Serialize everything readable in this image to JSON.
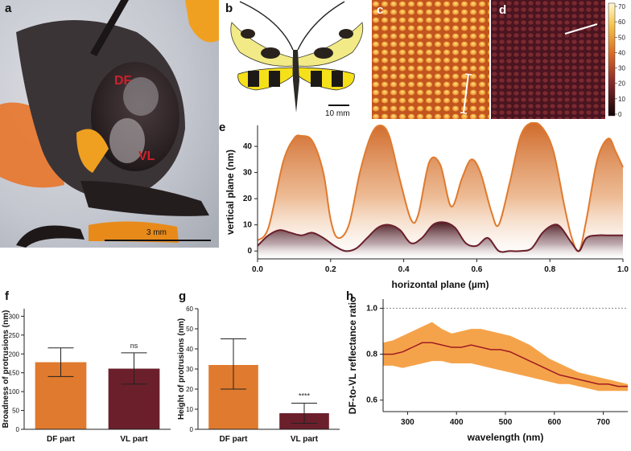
{
  "panel_labels": {
    "a": "a",
    "b": "b",
    "c": "c",
    "d": "d",
    "e": "e",
    "f": "f",
    "g": "g",
    "h": "h"
  },
  "photo_a": {
    "df_label": "DF",
    "vl_label": "VL",
    "scale_bar": "3 mm"
  },
  "photo_b": {
    "scale_bar": "10 mm"
  },
  "colorbar": {
    "ticks": [
      "70",
      "60",
      "50",
      "40",
      "30",
      "20",
      "10",
      "0"
    ]
  },
  "colors": {
    "orange": "#e07a2e",
    "dark": "#6b1f2b",
    "df_red": "#d0202a"
  },
  "chart_data": [
    {
      "id": "e",
      "type": "area",
      "xlabel": "horizontal plane (µm)",
      "ylabel": "vertical plane (nm)",
      "xlim": [
        0,
        1
      ],
      "ylim": [
        -3,
        48
      ],
      "xticks": [
        "0.0",
        "0.2",
        "0.4",
        "0.6",
        "0.8",
        "1.0"
      ],
      "yticks": [
        "0",
        "10",
        "20",
        "30",
        "40"
      ],
      "series": [
        {
          "name": "DF",
          "x": [
            0,
            0.03,
            0.07,
            0.1,
            0.12,
            0.15,
            0.18,
            0.2,
            0.22,
            0.25,
            0.28,
            0.31,
            0.335,
            0.36,
            0.39,
            0.42,
            0.44,
            0.47,
            0.5,
            0.53,
            0.56,
            0.585,
            0.61,
            0.64,
            0.66,
            0.69,
            0.72,
            0.75,
            0.78,
            0.81,
            0.84,
            0.86,
            0.88,
            0.9,
            0.93,
            0.96,
            0.98,
            1.0
          ],
          "values": [
            4,
            9,
            34,
            43,
            44,
            42,
            30,
            12,
            5,
            10,
            30,
            44,
            48,
            44,
            27,
            12,
            14,
            34,
            33,
            17,
            28,
            35,
            30,
            15,
            10,
            26,
            44,
            49,
            47,
            38,
            17,
            5,
            0,
            12,
            35,
            43,
            38,
            32
          ]
        },
        {
          "name": "VL",
          "x": [
            0,
            0.03,
            0.06,
            0.09,
            0.12,
            0.15,
            0.18,
            0.21,
            0.24,
            0.27,
            0.3,
            0.33,
            0.36,
            0.39,
            0.42,
            0.45,
            0.48,
            0.51,
            0.54,
            0.57,
            0.6,
            0.63,
            0.66,
            0.69,
            0.72,
            0.75,
            0.78,
            0.81,
            0.83,
            0.86,
            0.88,
            0.9,
            0.93,
            0.96,
            1.0
          ],
          "values": [
            2,
            6,
            8,
            7,
            6,
            7,
            5,
            2,
            0,
            1,
            5,
            9,
            10,
            8,
            3,
            5,
            10,
            11,
            9,
            3,
            2,
            5,
            0,
            0,
            0,
            1,
            7,
            10,
            9,
            3,
            0,
            5,
            6,
            6,
            6
          ]
        }
      ]
    },
    {
      "id": "f",
      "type": "bar",
      "categories": [
        "DF part",
        "VL part"
      ],
      "values": [
        178,
        161
      ],
      "error_low": [
        140,
        120
      ],
      "error_high": [
        216,
        203
      ],
      "annotation": "ns",
      "ylabel": "Broadness of protrusions (nm)",
      "ylim": [
        0,
        320
      ],
      "yticks": [
        "0",
        "50",
        "100",
        "150",
        "200",
        "250",
        "300"
      ]
    },
    {
      "id": "g",
      "type": "bar",
      "categories": [
        "DF part",
        "VL part"
      ],
      "values": [
        32,
        8
      ],
      "error_low": [
        20,
        3
      ],
      "error_high": [
        45,
        13
      ],
      "annotation": "****",
      "ylabel": "Height of protrusions (nm)",
      "ylim": [
        0,
        60
      ],
      "yticks": [
        "0",
        "10",
        "20",
        "30",
        "40",
        "50",
        "60"
      ]
    },
    {
      "id": "h",
      "type": "line",
      "xlabel": "wavelength (nm)",
      "ylabel": "DF-to-VL reflectance ratio",
      "xlim": [
        250,
        750
      ],
      "ylim": [
        0.55,
        1.04
      ],
      "xticks": [
        "300",
        "400",
        "500",
        "600",
        "700"
      ],
      "yticks": [
        "0.6",
        "0.8",
        "1.0"
      ],
      "reference_line": 1.0,
      "x": [
        250,
        270,
        290,
        310,
        330,
        350,
        370,
        390,
        410,
        430,
        450,
        470,
        490,
        510,
        530,
        550,
        570,
        590,
        610,
        630,
        650,
        670,
        690,
        710,
        730,
        750
      ],
      "values": [
        0.8,
        0.8,
        0.81,
        0.83,
        0.85,
        0.85,
        0.84,
        0.83,
        0.83,
        0.84,
        0.83,
        0.82,
        0.82,
        0.81,
        0.79,
        0.77,
        0.75,
        0.73,
        0.71,
        0.7,
        0.69,
        0.68,
        0.67,
        0.67,
        0.66,
        0.66
      ],
      "band_low": [
        0.75,
        0.75,
        0.74,
        0.75,
        0.76,
        0.77,
        0.77,
        0.76,
        0.76,
        0.76,
        0.75,
        0.74,
        0.73,
        0.72,
        0.71,
        0.7,
        0.69,
        0.68,
        0.67,
        0.67,
        0.66,
        0.65,
        0.64,
        0.64,
        0.64,
        0.64
      ],
      "band_high": [
        0.85,
        0.86,
        0.88,
        0.9,
        0.92,
        0.94,
        0.91,
        0.89,
        0.9,
        0.91,
        0.91,
        0.9,
        0.89,
        0.88,
        0.86,
        0.84,
        0.81,
        0.78,
        0.76,
        0.74,
        0.72,
        0.71,
        0.7,
        0.69,
        0.68,
        0.67
      ]
    }
  ]
}
